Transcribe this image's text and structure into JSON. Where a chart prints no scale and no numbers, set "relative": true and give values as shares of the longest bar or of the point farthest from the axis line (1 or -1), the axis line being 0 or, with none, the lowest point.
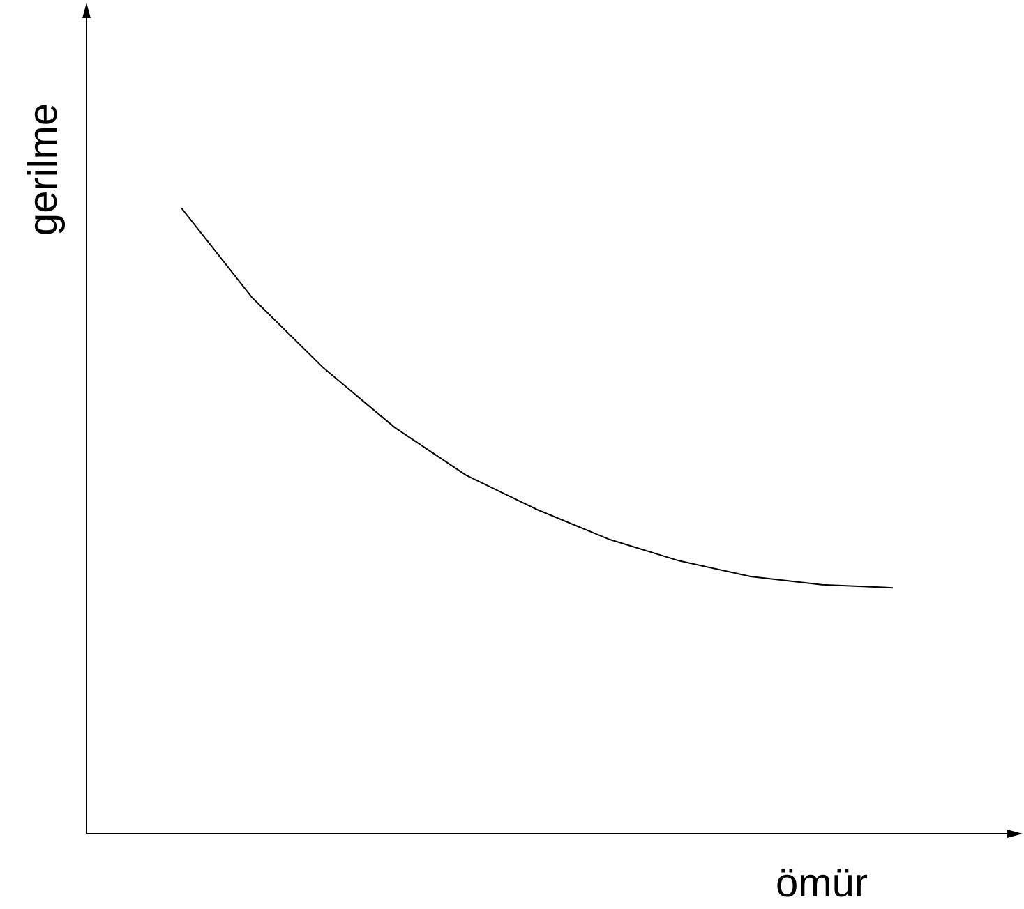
{
  "chart_data": {
    "type": "line",
    "xlabel": "ömür",
    "ylabel": "gerilme",
    "relative": true,
    "legend": false,
    "marker": "none",
    "line_style": "solid",
    "categories": [
      null,
      null,
      null,
      null,
      null,
      null,
      null,
      null,
      null,
      null,
      null,
      null,
      null
    ],
    "series": [
      {
        "color": "#000000",
        "values": [
          null,
          1,
          0.856,
          0.744,
          0.649,
          0.573,
          0.518,
          0.471,
          0.436,
          0.411,
          0.398,
          0.393,
          null
        ]
      }
    ]
  }
}
